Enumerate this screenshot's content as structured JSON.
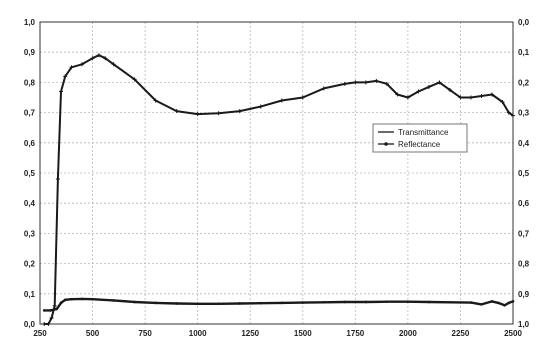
{
  "chart_data": {
    "type": "line",
    "title": "",
    "xlabel": "",
    "ylabel": "",
    "y2label": "",
    "xlim": [
      250,
      2500
    ],
    "ylim": [
      0,
      1
    ],
    "y2lim": [
      1,
      0
    ],
    "grid": true,
    "legend_position": "right-middle",
    "x_ticks": [
      "250",
      "500",
      "750",
      "1000",
      "1250",
      "1500",
      "1750",
      "2000",
      "2250",
      "2500"
    ],
    "x_tick_values": [
      250,
      500,
      750,
      1000,
      1250,
      1500,
      1750,
      2000,
      2250,
      2500
    ],
    "y_ticks_left": [
      "0,0",
      "0,1",
      "0,2",
      "0,3",
      "0,4",
      "0,5",
      "0,6",
      "0,7",
      "0,8",
      "0,9",
      "1,0"
    ],
    "y_ticks_right": [
      "1,0",
      "0,9",
      "0,8",
      "0,7",
      "0,6",
      "0,5",
      "0,4",
      "0,3",
      "0,2",
      "0,1",
      "0,0"
    ],
    "series": [
      {
        "name": "Transmittance",
        "marker": "plus",
        "color": "#1a1a1a",
        "x": [
          270,
          290,
          305,
          320,
          335,
          350,
          370,
          400,
          450,
          500,
          530,
          560,
          600,
          700,
          800,
          900,
          1000,
          1100,
          1200,
          1300,
          1400,
          1500,
          1600,
          1700,
          1750,
          1800,
          1850,
          1900,
          1950,
          2000,
          2050,
          2100,
          2150,
          2200,
          2250,
          2300,
          2350,
          2400,
          2450,
          2480,
          2500
        ],
        "y": [
          0.0,
          0.0,
          0.02,
          0.06,
          0.48,
          0.77,
          0.82,
          0.85,
          0.86,
          0.88,
          0.89,
          0.88,
          0.86,
          0.81,
          0.74,
          0.705,
          0.695,
          0.698,
          0.705,
          0.72,
          0.74,
          0.75,
          0.78,
          0.795,
          0.8,
          0.8,
          0.805,
          0.795,
          0.76,
          0.75,
          0.77,
          0.785,
          0.8,
          0.775,
          0.75,
          0.75,
          0.755,
          0.76,
          0.735,
          0.7,
          0.69
        ]
      },
      {
        "name": "Reflectance",
        "marker": "dot",
        "color": "#1a1a1a",
        "x": [
          270,
          300,
          330,
          350,
          370,
          400,
          450,
          500,
          600,
          700,
          800,
          900,
          1000,
          1100,
          1200,
          1300,
          1400,
          1500,
          1600,
          1700,
          1800,
          1900,
          2000,
          2100,
          2200,
          2300,
          2350,
          2400,
          2430,
          2460,
          2480,
          2500
        ],
        "y": [
          0.045,
          0.045,
          0.05,
          0.07,
          0.08,
          0.082,
          0.083,
          0.082,
          0.078,
          0.073,
          0.07,
          0.068,
          0.067,
          0.067,
          0.068,
          0.069,
          0.07,
          0.071,
          0.072,
          0.073,
          0.073,
          0.074,
          0.074,
          0.073,
          0.072,
          0.071,
          0.065,
          0.075,
          0.07,
          0.062,
          0.07,
          0.075
        ]
      }
    ]
  }
}
